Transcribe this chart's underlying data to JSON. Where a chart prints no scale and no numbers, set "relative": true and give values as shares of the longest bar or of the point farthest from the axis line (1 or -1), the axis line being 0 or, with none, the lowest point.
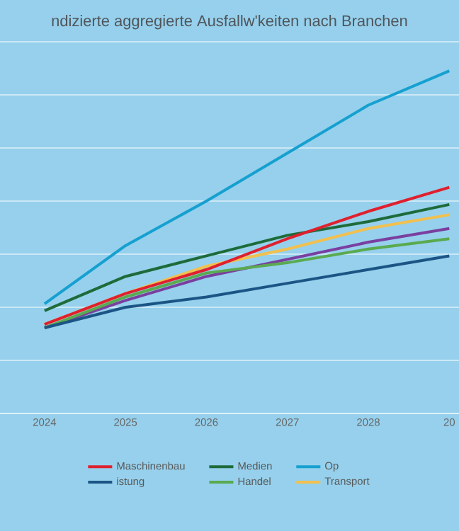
{
  "chart_data": {
    "type": "line",
    "title": "ndizierte aggregierte Ausfallw'keiten nach Branchen",
    "relative": true,
    "grid": "y",
    "legend": "bottom",
    "line_style": "solid",
    "marker": "none",
    "categories": [
      "2024",
      "2025",
      "2026",
      "2027",
      "2028",
      "20"
    ],
    "series": [
      {
        "name": "Maschinenbau",
        "color": "#e0202e",
        "values": [
          0.26,
          0.35,
          0.42,
          0.51,
          0.59,
          0.66
        ]
      },
      {
        "name": "Medien",
        "color": "#1e6b3a",
        "values": [
          0.3,
          0.4,
          0.46,
          0.52,
          0.56,
          0.61
        ]
      },
      {
        "name": "Op",
        "color": "#15a0d0",
        "values": [
          0.32,
          0.49,
          0.62,
          0.76,
          0.9,
          1.0
        ]
      },
      {
        "name": "istung",
        "color": "#1b5585",
        "values": [
          0.25,
          0.31,
          0.34,
          0.38,
          0.42,
          0.46
        ]
      },
      {
        "name": "Handel",
        "color": "#5aaa50",
        "values": [
          0.25,
          0.34,
          0.41,
          0.44,
          0.48,
          0.51
        ]
      },
      {
        "name": "Transport",
        "color": "#f2c04e",
        "values": [
          0.26,
          0.35,
          0.43,
          0.48,
          0.54,
          0.58
        ]
      },
      {
        "color": "#7a3fa0",
        "values": [
          0.25,
          0.33,
          0.4,
          0.45,
          0.5,
          0.54
        ]
      }
    ]
  }
}
